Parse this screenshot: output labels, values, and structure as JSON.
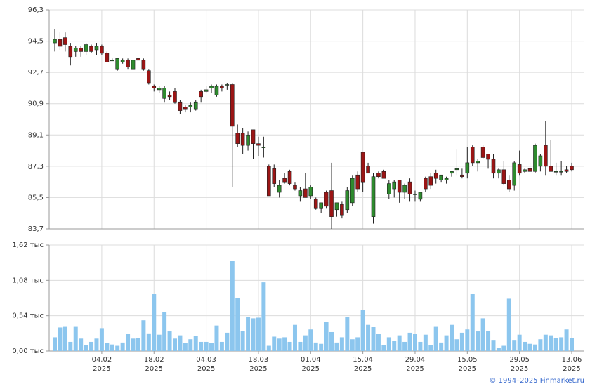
{
  "chart_data": [
    {
      "type": "candlestick",
      "up_color": "#2e8b2e",
      "down_color": "#9b1515",
      "open": [
        94.4,
        94.6,
        94.7,
        94.2,
        93.9,
        94.1,
        93.9,
        94.2,
        94.0,
        94.2,
        93.8,
        93.4,
        92.9,
        93.3,
        93.4,
        92.9,
        93.5,
        93.4,
        92.8,
        91.9,
        91.7,
        91.2,
        91.4,
        91.6,
        91.0,
        90.7,
        90.7,
        90.6,
        91.6,
        91.6,
        91.8,
        91.4,
        91.9,
        92.0,
        92.0,
        89.2,
        89.2,
        88.5,
        89.4,
        88.6,
        88.4,
        87.3,
        87.2,
        85.8,
        86.6,
        87.0,
        86.2,
        85.6,
        86.0,
        85.6,
        85.4,
        84.9,
        85.8,
        85.9,
        84.8,
        85.1,
        84.8,
        85.2,
        86.8,
        88.1,
        87.3,
        84.4,
        86.9,
        87.0,
        85.7,
        86.0,
        86.5,
        85.8,
        86.4,
        85.7,
        85.4,
        86.6,
        86.7,
        86.9,
        86.5,
        86.5,
        86.9,
        87.1,
        86.8,
        86.9,
        88.4,
        87.5,
        88.4,
        88.0,
        87.7,
        86.9,
        87.1,
        86.5,
        86.2,
        87.4,
        87.0,
        87.2,
        87.0,
        87.3,
        88.5,
        87.3,
        87.0,
        87.0,
        87.1,
        87.3
      ],
      "high": [
        95.2,
        95.0,
        95.0,
        94.4,
        94.2,
        94.2,
        94.4,
        94.3,
        94.4,
        94.3,
        93.9,
        93.5,
        93.5,
        93.5,
        93.5,
        93.5,
        93.5,
        93.5,
        92.9,
        92.0,
        91.9,
        91.9,
        91.6,
        91.8,
        91.1,
        90.8,
        91.0,
        91.1,
        91.7,
        91.9,
        92.0,
        92.0,
        92.0,
        92.1,
        92.1,
        89.7,
        89.5,
        89.3,
        89.4,
        89.0,
        89.0,
        87.4,
        87.4,
        86.5,
        86.9,
        87.1,
        86.4,
        86.1,
        86.9,
        86.2,
        85.5,
        85.2,
        85.9,
        87.5,
        85.2,
        85.3,
        86.1,
        86.8,
        87.0,
        88.1,
        87.5,
        86.9,
        87.0,
        87.1,
        86.5,
        86.5,
        86.5,
        86.3,
        86.6,
        85.9,
        85.8,
        86.7,
        86.9,
        87.1,
        86.8,
        86.7,
        87.0,
        88.3,
        87.2,
        88.4,
        88.5,
        87.7,
        88.5,
        88.0,
        88.0,
        87.2,
        87.6,
        86.8,
        87.6,
        88.2,
        87.2,
        87.5,
        88.6,
        88.0,
        89.9,
        88.8,
        87.5,
        87.6,
        87.3,
        87.5
      ],
      "low": [
        93.9,
        94.0,
        93.9,
        93.1,
        93.6,
        93.6,
        93.7,
        93.8,
        93.7,
        93.7,
        93.3,
        93.4,
        92.8,
        93.2,
        92.9,
        92.8,
        93.4,
        92.8,
        92.0,
        91.6,
        91.5,
        91.0,
        91.1,
        90.9,
        90.3,
        90.4,
        90.4,
        90.5,
        91.0,
        91.5,
        91.5,
        91.3,
        91.6,
        91.7,
        86.1,
        88.4,
        88.0,
        88.2,
        87.7,
        87.9,
        87.8,
        85.6,
        86.1,
        85.5,
        86.3,
        86.2,
        85.9,
        85.3,
        85.5,
        85.4,
        84.8,
        84.6,
        84.9,
        83.7,
        84.4,
        84.3,
        84.6,
        85.0,
        85.8,
        85.8,
        86.9,
        84.0,
        86.6,
        86.6,
        85.4,
        85.5,
        85.2,
        85.4,
        85.3,
        85.3,
        85.3,
        85.8,
        86.0,
        86.3,
        86.4,
        86.3,
        86.7,
        86.8,
        86.6,
        86.6,
        87.3,
        87.0,
        87.7,
        87.2,
        86.6,
        86.6,
        86.2,
        85.8,
        85.9,
        86.8,
        86.9,
        87.0,
        86.9,
        87.0,
        86.8,
        87.0,
        86.8,
        86.8,
        86.9,
        87.0
      ],
      "close": [
        94.6,
        94.2,
        94.3,
        93.6,
        94.1,
        93.9,
        94.3,
        93.9,
        94.2,
        93.8,
        93.3,
        93.4,
        93.5,
        93.4,
        93.0,
        93.4,
        93.4,
        92.9,
        92.1,
        91.8,
        91.8,
        91.8,
        91.3,
        91.0,
        90.5,
        90.6,
        90.8,
        91.0,
        91.3,
        91.7,
        91.9,
        91.9,
        91.8,
        92.0,
        89.6,
        88.6,
        88.5,
        89.1,
        88.6,
        88.5,
        88.4,
        85.6,
        86.3,
        86.2,
        86.4,
        86.3,
        86.0,
        85.9,
        85.5,
        86.1,
        84.9,
        85.2,
        85.0,
        84.4,
        85.2,
        84.5,
        85.9,
        86.6,
        86.0,
        86.4,
        86.9,
        86.7,
        86.7,
        86.6,
        86.3,
        86.4,
        85.8,
        86.2,
        85.7,
        85.7,
        85.8,
        86.0,
        86.2,
        86.6,
        86.8,
        86.6,
        87.0,
        87.2,
        86.7,
        87.5,
        87.5,
        87.6,
        87.8,
        87.7,
        86.9,
        87.1,
        86.3,
        86.0,
        87.5,
        86.9,
        87.1,
        87.0,
        88.5,
        87.9,
        87.3,
        87.0,
        87.0,
        87.0,
        87.0,
        87.1
      ],
      "ylim": [
        83.7,
        96.3
      ],
      "yticks": [
        {
          "value": 83.7,
          "label": "83,7"
        },
        {
          "value": 85.5,
          "label": "85,5"
        },
        {
          "value": 87.3,
          "label": "87,3"
        },
        {
          "value": 89.1,
          "label": "89,1"
        },
        {
          "value": 90.9,
          "label": "90,9"
        },
        {
          "value": 92.7,
          "label": "92,7"
        },
        {
          "value": 94.5,
          "label": "94,5"
        },
        {
          "value": 96.3,
          "label": "96,3"
        }
      ],
      "grid": true
    },
    {
      "type": "bar",
      "color": "#8cc6ee",
      "values": [
        0.21,
        0.36,
        0.38,
        0.14,
        0.38,
        0.19,
        0.09,
        0.14,
        0.19,
        0.35,
        0.12,
        0.1,
        0.08,
        0.13,
        0.26,
        0.19,
        0.2,
        0.47,
        0.27,
        0.87,
        0.25,
        0.6,
        0.3,
        0.19,
        0.24,
        0.12,
        0.18,
        0.23,
        0.14,
        0.14,
        0.12,
        0.39,
        0.14,
        0.28,
        1.38,
        0.81,
        0.31,
        0.52,
        0.5,
        0.51,
        1.05,
        0.08,
        0.22,
        0.19,
        0.21,
        0.14,
        0.4,
        0.14,
        0.24,
        0.33,
        0.13,
        0.11,
        0.45,
        0.29,
        0.13,
        0.21,
        0.52,
        0.18,
        0.21,
        0.63,
        0.4,
        0.37,
        0.26,
        0.09,
        0.21,
        0.16,
        0.24,
        0.14,
        0.28,
        0.26,
        0.14,
        0.25,
        0.09,
        0.38,
        0.13,
        0.24,
        0.4,
        0.18,
        0.28,
        0.33,
        0.87,
        0.3,
        0.5,
        0.31,
        0.17,
        0.05,
        0.08,
        0.8,
        0.17,
        0.25,
        0.14,
        0.11,
        0.1,
        0.18,
        0.25,
        0.24,
        0.2,
        0.21,
        0.33,
        0.2
      ],
      "ylim": [
        0,
        1.62
      ],
      "yticks": [
        {
          "value": 0,
          "label": "0,00 тыс"
        },
        {
          "value": 0.54,
          "label": "0,54 тыс"
        },
        {
          "value": 1.08,
          "label": "1,08 тыс"
        },
        {
          "value": 1.62,
          "label": "1,62 тыс"
        }
      ],
      "xticks": [
        {
          "value": 9,
          "label": "04.02\n2025"
        },
        {
          "value": 19,
          "label": "18.02\n2025"
        },
        {
          "value": 29,
          "label": "04.03\n2025"
        },
        {
          "value": 39,
          "label": "18.03\n2025"
        },
        {
          "value": 49,
          "label": "01.04\n2025"
        },
        {
          "value": 59,
          "label": "15.04\n2025"
        },
        {
          "value": 69,
          "label": "29.04\n2025"
        },
        {
          "value": 79,
          "label": "15.05\n2025"
        },
        {
          "value": 89,
          "label": "29.05\n2025"
        },
        {
          "value": 99,
          "label": "13.06\n2025"
        }
      ],
      "grid": true
    }
  ],
  "source": "© 1994–2025 Finmarket.ru"
}
